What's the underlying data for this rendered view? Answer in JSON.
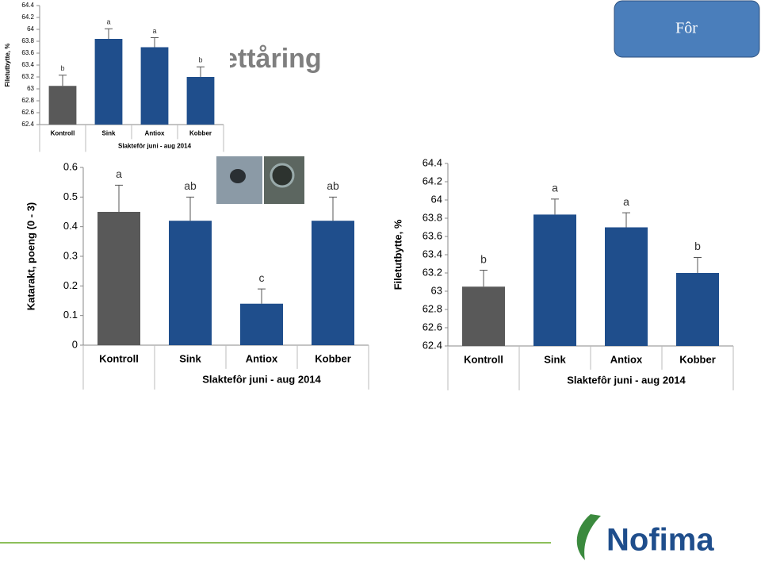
{
  "slide": {
    "title": "ettåring",
    "button": "Fôr",
    "logo": "Nofima"
  },
  "chart_data": [
    {
      "type": "bar",
      "ylabel": "Filetutbytte, %",
      "xlabel": "Slaktefôr juni - aug 2014",
      "categories": [
        "Kontroll",
        "Sink",
        "Antiox",
        "Kobber"
      ],
      "values": [
        63.05,
        63.84,
        63.7,
        63.2
      ],
      "errors": [
        0.18,
        0.17,
        0.16,
        0.17
      ],
      "annotations": [
        "b",
        "a",
        "a",
        "b"
      ],
      "colors": [
        "#595959",
        "#1f4e8c",
        "#1f4e8c",
        "#1f4e8c"
      ],
      "ylim": [
        62.4,
        64.4
      ],
      "yticks": [
        62.4,
        62.6,
        62.8,
        63,
        63.2,
        63.4,
        63.6,
        63.8,
        64,
        64.2,
        64.4
      ]
    },
    {
      "type": "bar",
      "ylabel": "Katarakt, poeng (0 - 3)",
      "xlabel": "Slaktefôr juni - aug 2014",
      "categories": [
        "Kontroll",
        "Sink",
        "Antiox",
        "Kobber"
      ],
      "values": [
        0.45,
        0.42,
        0.14,
        0.42
      ],
      "errors": [
        0.09,
        0.08,
        0.05,
        0.08
      ],
      "annotations": [
        "a",
        "ab",
        "c",
        "ab"
      ],
      "colors": [
        "#595959",
        "#1f4e8c",
        "#1f4e8c",
        "#1f4e8c"
      ],
      "ylim": [
        0,
        0.6
      ],
      "yticks": [
        0,
        0.1,
        0.2,
        0.3,
        0.4,
        0.5,
        0.6
      ]
    },
    {
      "type": "bar",
      "ylabel": "Filetutbytte, %",
      "xlabel": "Slaktefôr juni - aug 2014",
      "categories": [
        "Kontroll",
        "Sink",
        "Antiox",
        "Kobber"
      ],
      "values": [
        63.05,
        63.84,
        63.7,
        63.2
      ],
      "errors": [
        0.18,
        0.17,
        0.16,
        0.17
      ],
      "annotations": [
        "b",
        "a",
        "a",
        "b"
      ],
      "colors": [
        "#595959",
        "#1f4e8c",
        "#1f4e8c",
        "#1f4e8c"
      ],
      "ylim": [
        62.4,
        64.4
      ],
      "yticks": [
        62.4,
        62.6,
        62.8,
        63,
        63.2,
        63.4,
        63.6,
        63.8,
        64,
        64.2,
        64.4
      ]
    }
  ]
}
